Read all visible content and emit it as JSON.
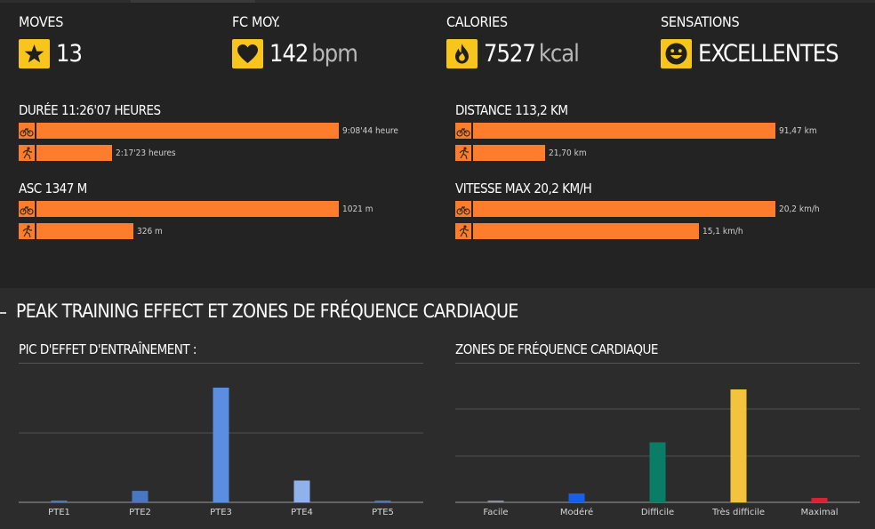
{
  "stats": [
    {
      "label": "MOVES",
      "value": "13",
      "unit": "",
      "icon": "star-icon"
    },
    {
      "label": "FC MOY.",
      "value": "142",
      "unit": "bpm",
      "icon": "heart-icon"
    },
    {
      "label": "CALORIES",
      "value": "7527",
      "unit": "kcal",
      "icon": "flame-icon"
    },
    {
      "label": "SENSATIONS",
      "value": "EXCELLENTES",
      "unit": "",
      "icon": "smiley-icon"
    }
  ],
  "metrics": {
    "duration": {
      "title": "DURÉE 11:26'07 HEURES",
      "rows": [
        {
          "icon": "bike-icon",
          "label": "9:08'44 heure",
          "value": 32924
        },
        {
          "icon": "run-icon",
          "label": "2:17'23 heures",
          "value": 8243
        }
      ],
      "max": 32924
    },
    "distance": {
      "title": "DISTANCE 113,2 KM",
      "rows": [
        {
          "icon": "bike-icon",
          "label": "91,47 km",
          "value": 91.47
        },
        {
          "icon": "run-icon",
          "label": "21,70 km",
          "value": 21.7
        }
      ],
      "max": 91.47
    },
    "ascent": {
      "title": "ASC 1347 M",
      "rows": [
        {
          "icon": "bike-icon",
          "label": "1021 m",
          "value": 1021
        },
        {
          "icon": "run-icon",
          "label": "326 m",
          "value": 326
        }
      ],
      "max": 1021
    },
    "speed": {
      "title": "VITESSE MAX 20,2 KM/H",
      "rows": [
        {
          "icon": "bike-icon",
          "label": "20,2 km/h",
          "value": 20.2
        },
        {
          "icon": "run-icon",
          "label": "15,1 km/h",
          "value": 15.1
        }
      ],
      "max": 20.2
    }
  },
  "section": {
    "title": "PEAK TRAINING EFFECT ET ZONES DE FRÉQUENCE CARDIAQUE"
  },
  "colors": {
    "accent": "#f8c51c",
    "bar": "#fd7d2c"
  },
  "chart_data": [
    {
      "type": "bar",
      "title": "PIC D'EFFET D'ENTRAÎNEMENT :",
      "categories": [
        "PTE1",
        "PTE2",
        "PTE3",
        "PTE4",
        "PTE5"
      ],
      "values": [
        0,
        1,
        10,
        1.9,
        0
      ],
      "colors": [
        "#4a78c0",
        "#4a78c0",
        "#5b8ee0",
        "#8fb2ec",
        "#4a78c0"
      ],
      "ylim": [
        0,
        10
      ],
      "grid": true,
      "xlabel": "",
      "ylabel": ""
    },
    {
      "type": "bar",
      "title": "ZONES DE FRÉQUENCE CARDIAQUE",
      "categories": [
        "Facile",
        "Modéré",
        "Difficile",
        "Très difficile",
        "Maximal"
      ],
      "values": [
        2,
        10,
        68,
        128,
        5
      ],
      "colors": [
        "#8a8f99",
        "#1660e8",
        "#0a7d66",
        "#f3c33e",
        "#e02030"
      ],
      "ylim": [
        0,
        130
      ],
      "grid": true,
      "xlabel": "",
      "ylabel": ""
    }
  ]
}
